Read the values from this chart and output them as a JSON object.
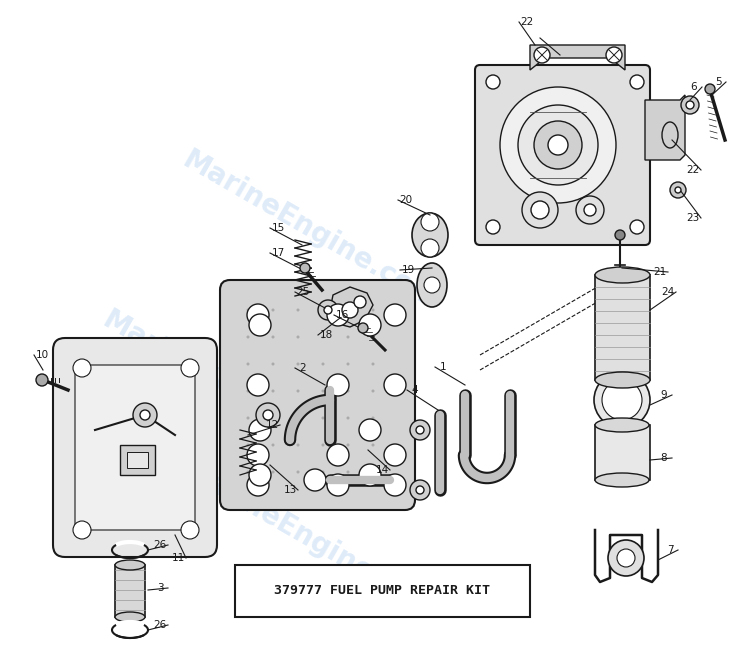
{
  "bg_color": "#ffffff",
  "watermark_text": "MarineEngine.com",
  "watermark_color": "#aaccee",
  "watermark_alpha": 0.38,
  "kit_label": "379777 FUEL PUMP REPAIR KIT",
  "fig_width": 7.5,
  "fig_height": 6.51,
  "dpi": 100
}
